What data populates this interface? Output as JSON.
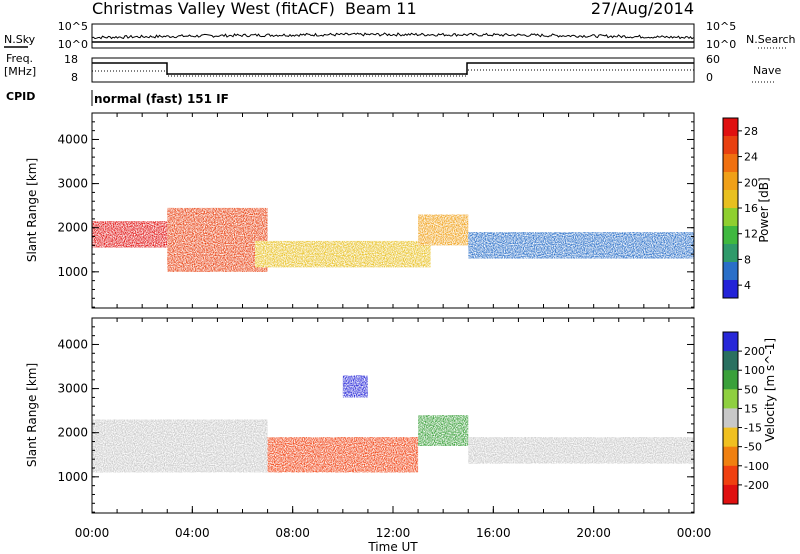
{
  "header": {
    "station": "Christmas Valley West (fitACF)",
    "beam": "Beam 11",
    "date": "27/Aug/2014"
  },
  "noise_panel": {
    "left_label": "N.Sky",
    "right_label": "N.Search",
    "left_ticks": [
      "10^5",
      "10^0"
    ],
    "right_ticks": [
      "10^5",
      "10^0"
    ]
  },
  "freq_panel": {
    "left_label_line1": "Freq.",
    "left_label_line2": "[MHz]",
    "right_label": "Nave",
    "left_ticks": [
      "18",
      "8"
    ],
    "right_ticks": [
      "60",
      "0"
    ]
  },
  "cpid": {
    "label": "CPID",
    "value": "normal (fast) 151 IF"
  },
  "chart_data": [
    {
      "type": "heatmap",
      "name": "Power",
      "ylabel": "Slant Range [km]",
      "colorbar_label": "Power [dB]",
      "y_ticks": [
        1000,
        2000,
        3000,
        4000
      ],
      "ylim": [
        180,
        4600
      ],
      "colorbar_ticks": [
        4,
        8,
        12,
        16,
        20,
        24,
        28
      ],
      "colorbar_colors": [
        "#2323d8",
        "#2a6fc8",
        "#2f9a6a",
        "#3fb83f",
        "#8fcf2f",
        "#e8c020",
        "#f0a018",
        "#f07010",
        "#e84010",
        "#e01010"
      ],
      "features": [
        {
          "t_start": "00:00",
          "t_end": "03:00",
          "range_km": [
            1550,
            2150
          ],
          "power_db": 28
        },
        {
          "t_start": "03:00",
          "t_end": "07:00",
          "range_km": [
            1000,
            2450
          ],
          "power_db": 24
        },
        {
          "t_start": "06:30",
          "t_end": "13:30",
          "range_km": [
            1100,
            1700
          ],
          "power_db": 16
        },
        {
          "t_start": "13:00",
          "t_end": "15:00",
          "range_km": [
            1600,
            2300
          ],
          "power_db": 20
        },
        {
          "t_start": "15:00",
          "t_end": "24:00",
          "range_km": [
            1300,
            1900
          ],
          "power_db": 6
        }
      ]
    },
    {
      "type": "heatmap",
      "name": "Velocity",
      "ylabel": "Slant Range [km]",
      "xlabel": "Time UT",
      "x_ticks": [
        "00:00",
        "04:00",
        "08:00",
        "12:00",
        "16:00",
        "20:00",
        "00:00"
      ],
      "y_ticks": [
        1000,
        2000,
        3000,
        4000
      ],
      "ylim": [
        180,
        4600
      ],
      "colorbar_label": "Velocity [m s^-1]",
      "colorbar_ticks": [
        200,
        100,
        50,
        15,
        -15,
        -50,
        -100,
        -200
      ],
      "colorbar_colors": [
        "#2828d8",
        "#2a7060",
        "#3aa03a",
        "#8fd040",
        "#c8c8c8",
        "#f0c020",
        "#f08010",
        "#f04010",
        "#e01010"
      ],
      "features": [
        {
          "t_start": "00:00",
          "t_end": "07:00",
          "range_km": [
            1100,
            2300
          ],
          "velocity": 0
        },
        {
          "t_start": "07:00",
          "t_end": "13:00",
          "range_km": [
            1100,
            1900
          ],
          "velocity": -100
        },
        {
          "t_start": "10:00",
          "t_end": "11:00",
          "range_km": [
            2800,
            3300
          ],
          "velocity": 150
        },
        {
          "t_start": "13:00",
          "t_end": "15:00",
          "range_km": [
            1700,
            2400
          ],
          "velocity": 60
        },
        {
          "t_start": "15:00",
          "t_end": "24:00",
          "range_km": [
            1300,
            1900
          ],
          "velocity": 0
        }
      ]
    }
  ]
}
